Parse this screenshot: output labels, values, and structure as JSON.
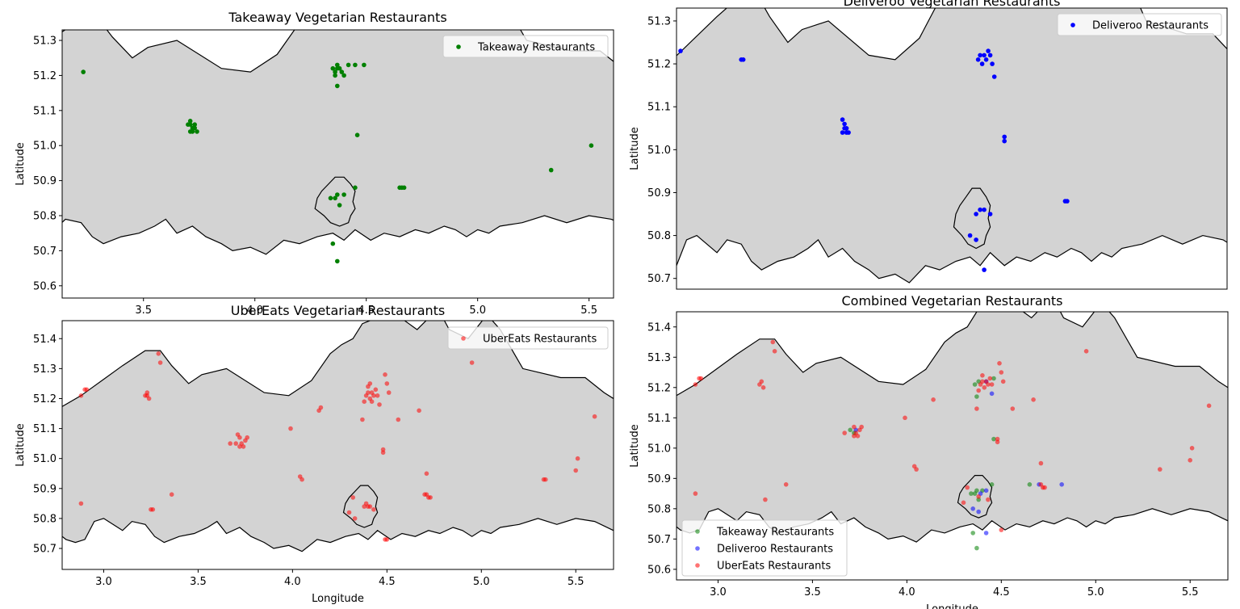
{
  "figure": {
    "colors": {
      "land": "#d3d3d3",
      "takeaway": "#008000",
      "deliveroo": "#0000ff",
      "ubereats": "#ff0000"
    }
  },
  "chart_data": [
    {
      "id": "takeaway",
      "type": "scatter",
      "title": "Takeaway Vegetarian Restaurants",
      "xlabel": "",
      "ylabel": "Latitude",
      "xlim": [
        3.135,
        5.61
      ],
      "ylim": [
        50.565,
        51.33
      ],
      "xticks": [
        3.5,
        4.0,
        4.5,
        5.0,
        5.5
      ],
      "xtick_labels": [
        "3.5",
        "4.0",
        "4.5",
        "5.0",
        "5.5"
      ],
      "yticks": [
        50.6,
        50.7,
        50.8,
        50.9,
        51.0,
        51.1,
        51.2,
        51.3
      ],
      "ytick_labels": [
        "50.6",
        "50.7",
        "50.8",
        "50.9",
        "51.0",
        "51.1",
        "51.2",
        "51.3"
      ],
      "legend_position": "top-right",
      "series": [
        {
          "name": "Takeaway Restaurants",
          "color": "#008000",
          "alpha": 1,
          "points": [
            [
              3.23,
              51.21
            ],
            [
              3.7,
              51.06
            ],
            [
              3.71,
              51.07
            ],
            [
              3.72,
              51.05
            ],
            [
              3.71,
              51.04
            ],
            [
              3.73,
              51.06
            ],
            [
              3.72,
              51.04
            ],
            [
              3.74,
              51.04
            ],
            [
              3.73,
              51.05
            ],
            [
              3.71,
              51.06
            ],
            [
              4.35,
              51.22
            ],
            [
              4.36,
              51.21
            ],
            [
              4.37,
              51.23
            ],
            [
              4.38,
              51.22
            ],
            [
              4.36,
              51.2
            ],
            [
              4.39,
              51.21
            ],
            [
              4.4,
              51.2
            ],
            [
              4.37,
              51.22
            ],
            [
              4.42,
              51.23
            ],
            [
              4.45,
              51.23
            ],
            [
              4.49,
              51.23
            ],
            [
              4.37,
              51.17
            ],
            [
              4.46,
              51.03
            ],
            [
              4.34,
              50.85
            ],
            [
              4.36,
              50.85
            ],
            [
              4.38,
              50.83
            ],
            [
              4.37,
              50.86
            ],
            [
              4.4,
              50.86
            ],
            [
              4.45,
              50.88
            ],
            [
              4.65,
              50.88
            ],
            [
              4.66,
              50.88
            ],
            [
              4.67,
              50.88
            ],
            [
              5.33,
              50.93
            ],
            [
              5.51,
              51.0
            ],
            [
              4.35,
              50.72
            ],
            [
              4.37,
              50.67
            ]
          ]
        }
      ]
    },
    {
      "id": "deliveroo",
      "type": "scatter",
      "title": "Deliveroo Vegetarian Restaurants",
      "xlabel": "",
      "ylabel": "Latitude",
      "xlim": [
        2.9,
        5.62
      ],
      "ylim": [
        50.675,
        51.33
      ],
      "xticks": [],
      "xtick_labels": [],
      "yticks": [
        50.7,
        50.8,
        50.9,
        51.0,
        51.1,
        51.2,
        51.3
      ],
      "ytick_labels": [
        "50.7",
        "50.8",
        "50.9",
        "51.0",
        "51.1",
        "51.2",
        "51.3"
      ],
      "legend_position": "top-right",
      "series": [
        {
          "name": "Deliveroo Restaurants",
          "color": "#0000ff",
          "alpha": 1,
          "points": [
            [
              2.92,
              51.23
            ],
            [
              3.22,
              51.21
            ],
            [
              3.23,
              51.21
            ],
            [
              3.72,
              51.07
            ],
            [
              3.73,
              51.05
            ],
            [
              3.74,
              51.04
            ],
            [
              3.72,
              51.04
            ],
            [
              3.73,
              51.06
            ],
            [
              3.75,
              51.04
            ],
            [
              3.74,
              51.05
            ],
            [
              4.39,
              51.21
            ],
            [
              4.4,
              51.22
            ],
            [
              4.41,
              51.2
            ],
            [
              4.42,
              51.22
            ],
            [
              4.43,
              51.21
            ],
            [
              4.44,
              51.23
            ],
            [
              4.45,
              51.22
            ],
            [
              4.46,
              51.2
            ],
            [
              4.47,
              51.17
            ],
            [
              4.52,
              51.03
            ],
            [
              4.52,
              51.02
            ],
            [
              4.38,
              50.85
            ],
            [
              4.4,
              50.86
            ],
            [
              4.42,
              50.86
            ],
            [
              4.45,
              50.85
            ],
            [
              4.35,
              50.8
            ],
            [
              4.38,
              50.79
            ],
            [
              4.42,
              50.72
            ],
            [
              4.82,
              50.88
            ],
            [
              4.83,
              50.88
            ]
          ]
        }
      ]
    },
    {
      "id": "ubereats",
      "type": "scatter",
      "title": "UberEats Vegetarian Restaurants",
      "xlabel": "Longitude",
      "ylabel": "Latitude",
      "xlim": [
        2.78,
        5.7
      ],
      "ylim": [
        50.63,
        51.46
      ],
      "xticks": [
        3.0,
        3.5,
        4.0,
        4.5,
        5.0,
        5.5
      ],
      "xtick_labels": [
        "3.0",
        "3.5",
        "4.0",
        "4.5",
        "5.0",
        "5.5"
      ],
      "yticks": [
        50.7,
        50.8,
        50.9,
        51.0,
        51.1,
        51.2,
        51.3,
        51.4
      ],
      "ytick_labels": [
        "50.7",
        "50.8",
        "50.9",
        "51.0",
        "51.1",
        "51.2",
        "51.3",
        "51.4"
      ],
      "legend_position": "top-right",
      "series": [
        {
          "name": "UberEats Restaurants",
          "color": "#ff0000",
          "alpha": 0.55,
          "points": [
            [
              2.9,
              51.23
            ],
            [
              2.91,
              51.23
            ],
            [
              2.88,
              51.21
            ],
            [
              3.29,
              51.35
            ],
            [
              3.3,
              51.32
            ],
            [
              3.22,
              51.21
            ],
            [
              3.23,
              51.22
            ],
            [
              3.24,
              51.2
            ],
            [
              3.23,
              51.21
            ],
            [
              3.72,
              51.07
            ],
            [
              3.73,
              51.05
            ],
            [
              3.74,
              51.04
            ],
            [
              3.72,
              51.04
            ],
            [
              3.75,
              51.06
            ],
            [
              3.7,
              51.05
            ],
            [
              3.76,
              51.07
            ],
            [
              3.67,
              51.05
            ],
            [
              3.71,
              51.08
            ],
            [
              4.39,
              51.21
            ],
            [
              4.4,
              51.22
            ],
            [
              4.41,
              51.2
            ],
            [
              4.42,
              51.22
            ],
            [
              4.43,
              51.21
            ],
            [
              4.38,
              51.19
            ],
            [
              4.44,
              51.23
            ],
            [
              4.4,
              51.24
            ],
            [
              4.45,
              51.21
            ],
            [
              4.42,
              51.19
            ],
            [
              4.37,
              51.13
            ],
            [
              4.49,
              51.28
            ],
            [
              4.5,
              51.25
            ],
            [
              4.51,
              51.22
            ],
            [
              4.56,
              51.13
            ],
            [
              4.46,
              51.18
            ],
            [
              4.41,
              51.25
            ],
            [
              4.95,
              51.32
            ],
            [
              5.6,
              51.14
            ],
            [
              4.14,
              51.16
            ],
            [
              4.15,
              51.17
            ],
            [
              3.99,
              51.1
            ],
            [
              4.67,
              51.16
            ],
            [
              4.48,
              51.03
            ],
            [
              4.48,
              51.02
            ],
            [
              5.51,
              51.0
            ],
            [
              5.5,
              50.96
            ],
            [
              4.04,
              50.94
            ],
            [
              4.05,
              50.93
            ],
            [
              4.71,
              50.88
            ],
            [
              4.72,
              50.87
            ],
            [
              4.7,
              50.88
            ],
            [
              4.73,
              50.87
            ],
            [
              4.71,
              50.95
            ],
            [
              5.34,
              50.93
            ],
            [
              5.33,
              50.93
            ],
            [
              3.36,
              50.88
            ],
            [
              3.25,
              50.83
            ],
            [
              3.26,
              50.83
            ],
            [
              2.88,
              50.85
            ],
            [
              4.38,
              50.84
            ],
            [
              4.39,
              50.85
            ],
            [
              4.4,
              50.84
            ],
            [
              4.32,
              50.87
            ],
            [
              4.3,
              50.82
            ],
            [
              4.33,
              50.8
            ],
            [
              4.43,
              50.83
            ],
            [
              4.41,
              50.84
            ],
            [
              4.5,
              50.73
            ],
            [
              4.49,
              50.73
            ]
          ]
        }
      ]
    },
    {
      "id": "combined",
      "type": "scatter",
      "title": "Combined Vegetarian Restaurants",
      "xlabel": "Longitude",
      "ylabel": "Latitude",
      "xlim": [
        2.78,
        5.7
      ],
      "ylim": [
        50.565,
        51.45
      ],
      "xticks": [
        3.0,
        3.5,
        4.0,
        4.5,
        5.0,
        5.5
      ],
      "xtick_labels": [
        "3.0",
        "3.5",
        "4.0",
        "4.5",
        "5.0",
        "5.5"
      ],
      "yticks": [
        50.6,
        50.7,
        50.8,
        50.9,
        51.0,
        51.1,
        51.2,
        51.3,
        51.4
      ],
      "ytick_labels": [
        "50.6",
        "50.7",
        "50.8",
        "50.9",
        "51.0",
        "51.1",
        "51.2",
        "51.3",
        "51.4"
      ],
      "legend_position": "lower-left",
      "series": [
        {
          "name": "Takeaway Restaurants",
          "color": "#008000",
          "alpha": 0.55,
          "points": [
            [
              3.7,
              51.06
            ],
            [
              3.72,
              51.05
            ],
            [
              4.36,
              51.21
            ],
            [
              4.38,
              51.22
            ],
            [
              4.46,
              51.23
            ],
            [
              4.37,
              51.17
            ],
            [
              4.34,
              50.85
            ],
            [
              4.36,
              50.85
            ],
            [
              4.38,
              50.83
            ],
            [
              4.37,
              50.86
            ],
            [
              4.4,
              50.86
            ],
            [
              4.45,
              50.88
            ],
            [
              4.65,
              50.88
            ],
            [
              4.35,
              50.72
            ],
            [
              4.37,
              50.67
            ],
            [
              4.46,
              51.03
            ]
          ]
        },
        {
          "name": "Deliveroo Restaurants",
          "color": "#0000ff",
          "alpha": 0.55,
          "points": [
            [
              3.73,
              51.06
            ],
            [
              4.42,
              51.22
            ],
            [
              4.45,
              51.18
            ],
            [
              4.39,
              50.85
            ],
            [
              4.42,
              50.86
            ],
            [
              4.35,
              50.8
            ],
            [
              4.38,
              50.79
            ],
            [
              4.42,
              50.72
            ],
            [
              4.82,
              50.88
            ],
            [
              4.7,
              50.88
            ]
          ]
        },
        {
          "name": "UberEats Restaurants",
          "color": "#ff0000",
          "alpha": 0.55,
          "points": [
            [
              2.9,
              51.23
            ],
            [
              2.91,
              51.23
            ],
            [
              2.88,
              51.21
            ],
            [
              3.29,
              51.35
            ],
            [
              3.3,
              51.32
            ],
            [
              3.22,
              51.21
            ],
            [
              3.23,
              51.22
            ],
            [
              3.24,
              51.2
            ],
            [
              3.72,
              51.07
            ],
            [
              3.73,
              51.05
            ],
            [
              3.74,
              51.04
            ],
            [
              3.72,
              51.04
            ],
            [
              3.75,
              51.06
            ],
            [
              3.67,
              51.05
            ],
            [
              3.76,
              51.07
            ],
            [
              4.39,
              51.21
            ],
            [
              4.4,
              51.22
            ],
            [
              4.41,
              51.2
            ],
            [
              4.42,
              51.22
            ],
            [
              4.43,
              51.21
            ],
            [
              4.38,
              51.19
            ],
            [
              4.44,
              51.23
            ],
            [
              4.4,
              51.24
            ],
            [
              4.45,
              51.21
            ],
            [
              4.37,
              51.13
            ],
            [
              4.49,
              51.28
            ],
            [
              4.5,
              51.25
            ],
            [
              4.51,
              51.22
            ],
            [
              4.56,
              51.13
            ],
            [
              4.95,
              51.32
            ],
            [
              5.6,
              51.14
            ],
            [
              4.14,
              51.16
            ],
            [
              3.99,
              51.1
            ],
            [
              4.67,
              51.16
            ],
            [
              4.48,
              51.03
            ],
            [
              4.48,
              51.02
            ],
            [
              5.51,
              51.0
            ],
            [
              5.5,
              50.96
            ],
            [
              4.04,
              50.94
            ],
            [
              4.05,
              50.93
            ],
            [
              4.71,
              50.88
            ],
            [
              4.72,
              50.87
            ],
            [
              4.73,
              50.87
            ],
            [
              4.71,
              50.95
            ],
            [
              5.34,
              50.93
            ],
            [
              3.36,
              50.88
            ],
            [
              3.25,
              50.83
            ],
            [
              2.88,
              50.85
            ],
            [
              4.38,
              50.84
            ],
            [
              4.32,
              50.87
            ],
            [
              4.3,
              50.82
            ],
            [
              4.43,
              50.83
            ],
            [
              4.5,
              50.73
            ]
          ]
        }
      ]
    }
  ]
}
